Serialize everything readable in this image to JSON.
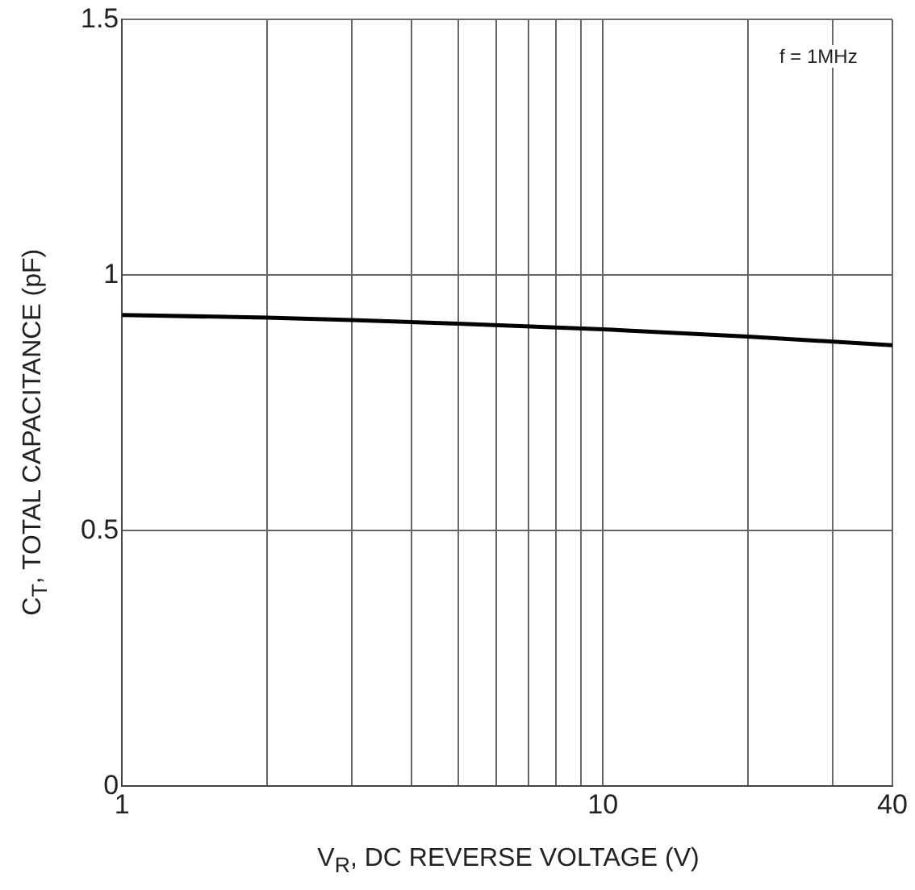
{
  "chart_data": {
    "type": "line",
    "xlabel": "V$_{R}$, DC REVERSE VOLTAGE (V)",
    "ylabel": "C$_{T}$, TOTAL CAPACITANCE (pF)",
    "annotations": [
      "f = 1MHz"
    ],
    "x": [
      1,
      2,
      3,
      5,
      10,
      20,
      40
    ],
    "series": [
      {
        "color": "#000000",
        "values": [
          0.922,
          0.917,
          0.912,
          0.905,
          0.894,
          0.88,
          0.863
        ]
      }
    ],
    "log": "x",
    "xlim": [
      1,
      40
    ],
    "ylim": [
      0,
      1.5
    ],
    "xticks": [
      1,
      {
        "value": 2,
        "label": null
      },
      {
        "value": 3,
        "label": null
      },
      {
        "value": 4,
        "label": null
      },
      {
        "value": 5,
        "label": null
      },
      {
        "value": 6,
        "label": null
      },
      {
        "value": 7,
        "label": null
      },
      {
        "value": 8,
        "label": null
      },
      {
        "value": 9,
        "label": null
      },
      10,
      {
        "value": 20,
        "label": null
      },
      {
        "value": 30,
        "label": null
      },
      40
    ],
    "yticks": [
      0,
      0.5,
      1,
      1.5
    ],
    "grid": true,
    "marker": "none",
    "line_style": "solid"
  }
}
